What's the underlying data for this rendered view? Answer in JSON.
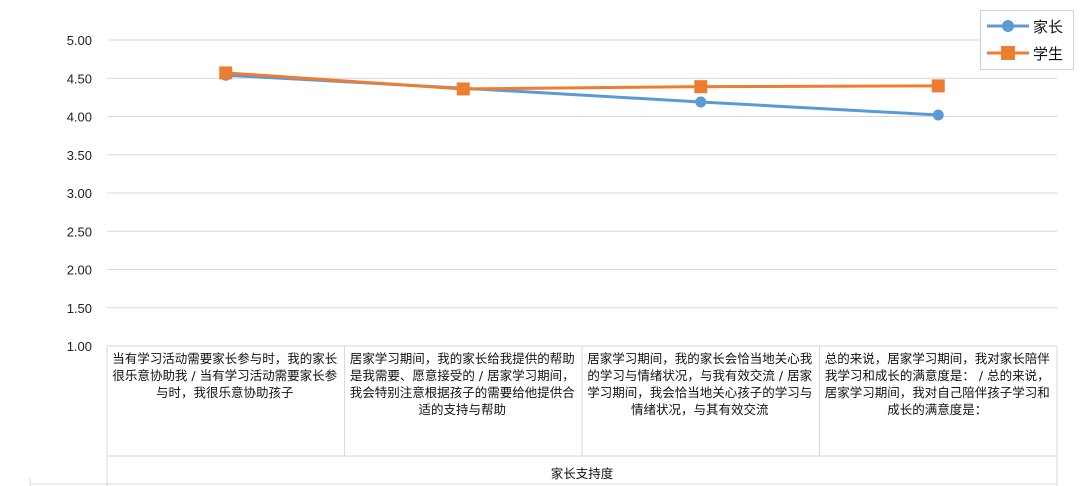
{
  "chart_data": {
    "type": "line",
    "xlabel": "家长支持度",
    "ylim": [
      1.0,
      5.0
    ],
    "yticks": [
      "5.00",
      "4.50",
      "4.00",
      "3.50",
      "3.00",
      "2.50",
      "2.00",
      "1.50",
      "1.00"
    ],
    "categories": [
      "当有学习活动需要家长参与时，我的家长很乐意协助我 / 当有学习活动需要家长参与时，我很乐意协助孩子",
      "居家学习期间，我的家长给我提供的帮助是我需要、愿意接受的 / 居家学习期间，我会特别注意根据孩子的需要给他提供合适的支持与帮助",
      "居家学习期间，我的家长会恰当地关心我的学习与情绪状况，与我有效交流 / 居家学习期间，我会恰当地关心孩子的学习与情绪状况，与其有效交流",
      "总的来说，居家学习期间，我对家长陪伴我学习和成长的满意度是：  / 总的来说，居家学习期间，我对自己陪伴孩子学习和成长的满意度是："
    ],
    "series": [
      {
        "name": "家长",
        "values": [
          4.54,
          4.37,
          4.19,
          4.02
        ],
        "color": "#5b9bd5",
        "marker": "circle"
      },
      {
        "name": "学生",
        "values": [
          4.57,
          4.36,
          4.39,
          4.4
        ],
        "color": "#ed7d31",
        "marker": "square"
      }
    ]
  }
}
